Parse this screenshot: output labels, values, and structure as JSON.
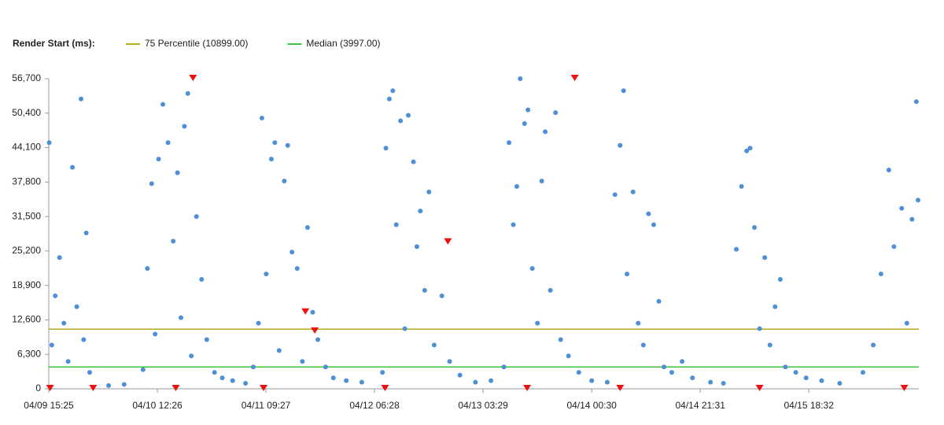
{
  "chart_data": {
    "type": "scatter",
    "legend_title": "Render Start (ms):",
    "xlim": [
      "04/09 15:25",
      "04/16 15:49"
    ],
    "xticks": [
      "04/09 15:25",
      "04/10 12:26",
      "04/11 09:27",
      "04/12 06:28",
      "04/13 03:29",
      "04/14 00:30",
      "04/14 21:31",
      "04/15 18:32"
    ],
    "ylim": [
      0,
      56700
    ],
    "yticks": [
      0,
      {
        "value": 6300,
        "label": "6,300"
      },
      {
        "value": 12600,
        "label": "12,600"
      },
      {
        "value": 18900,
        "label": "18,900"
      },
      {
        "value": 25200,
        "label": "25,200"
      },
      {
        "value": 31500,
        "label": "31,500"
      },
      {
        "value": 37800,
        "label": "37,800"
      },
      {
        "value": 44100,
        "label": "44,100"
      },
      {
        "value": 50400,
        "label": "50,400"
      },
      {
        "value": 56700,
        "label": "56,700"
      }
    ],
    "reference_lines": [
      {
        "name": "75 Percentile (10899.00)",
        "value": 10899,
        "color": "#b8a81e"
      },
      {
        "name": "Median (3997.00)",
        "value": 3997,
        "color": "#3cc43c"
      }
    ],
    "series": [
      {
        "color": "#4f8fd6",
        "marker": "circle",
        "x": [
          "04/09 15:30",
          "04/09 16:00",
          "04/09 16:40",
          "04/09 17:30",
          "04/09 18:20",
          "04/09 19:10",
          "04/09 20:00",
          "04/09 20:50",
          "04/09 21:40",
          "04/09 22:10",
          "04/09 22:40",
          "04/09 23:20",
          "04/10 03:00",
          "04/10 06:00",
          "04/10 09:40",
          "04/10 10:30",
          "04/10 11:20",
          "04/10 12:00",
          "04/10 12:40",
          "04/10 13:30",
          "04/10 14:30",
          "04/10 15:30",
          "04/10 16:20",
          "04/10 17:00",
          "04/10 17:40",
          "04/10 18:20",
          "04/10 19:00",
          "04/10 20:00",
          "04/10 21:00",
          "04/10 22:00",
          "04/10 23:30",
          "04/11 01:00",
          "04/11 03:00",
          "04/11 05:30",
          "04/11 07:00",
          "04/11 08:00",
          "04/11 08:40",
          "04/11 09:30",
          "04/11 10:30",
          "04/11 11:10",
          "04/11 12:00",
          "04/11 13:00",
          "04/11 13:40",
          "04/11 14:30",
          "04/11 15:30",
          "04/11 16:30",
          "04/11 17:30",
          "04/11 18:30",
          "04/11 19:30",
          "04/11 21:00",
          "04/11 22:30",
          "04/12 01:00",
          "04/12 04:00",
          "04/12 08:00",
          "04/12 08:40",
          "04/12 09:20",
          "04/12 10:00",
          "04/12 10:40",
          "04/12 11:30",
          "04/12 12:20",
          "04/12 13:00",
          "04/12 14:00",
          "04/12 14:40",
          "04/12 15:20",
          "04/12 16:10",
          "04/12 17:00",
          "04/12 18:00",
          "04/12 19:30",
          "04/12 21:00",
          "04/12 23:00",
          "04/13 02:00",
          "04/13 05:00",
          "04/13 07:30",
          "04/13 08:30",
          "04/13 09:20",
          "04/13 10:00",
          "04/13 10:40",
          "04/13 11:30",
          "04/13 12:10",
          "04/13 13:00",
          "04/13 14:00",
          "04/13 14:50",
          "04/13 15:30",
          "04/13 16:30",
          "04/13 17:30",
          "04/13 18:30",
          "04/13 20:00",
          "04/13 22:00",
          "04/14 00:30",
          "04/14 03:30",
          "04/14 05:00",
          "04/14 06:00",
          "04/14 06:40",
          "04/14 07:20",
          "04/14 08:30",
          "04/14 09:30",
          "04/14 10:30",
          "04/14 11:30",
          "04/14 12:30",
          "04/14 13:30",
          "04/14 14:30",
          "04/14 16:00",
          "04/14 18:00",
          "04/14 20:00",
          "04/14 23:30",
          "04/15 02:00",
          "04/15 04:30",
          "04/15 05:30",
          "04/15 06:30",
          "04/15 07:10",
          "04/15 08:00",
          "04/15 09:00",
          "04/15 10:00",
          "04/15 11:00",
          "04/15 12:00",
          "04/15 13:00",
          "04/15 14:00",
          "04/15 16:00",
          "04/15 18:00",
          "04/15 21:00",
          "04/16 00:30",
          "04/16 05:00",
          "04/16 07:00",
          "04/16 08:30",
          "04/16 10:00",
          "04/16 11:00",
          "04/16 12:30",
          "04/16 13:30",
          "04/16 14:30",
          "04/16 15:20",
          "04/16 15:40"
        ],
        "values": [
          45000,
          8000,
          17000,
          24000,
          12000,
          5000,
          40500,
          15000,
          53000,
          9000,
          28500,
          3000,
          600,
          800,
          3500,
          22000,
          37500,
          10000,
          42000,
          52000,
          45000,
          27000,
          39500,
          13000,
          48000,
          54000,
          6000,
          31500,
          20000,
          9000,
          3000,
          2000,
          1500,
          1000,
          4000,
          12000,
          49500,
          21000,
          42000,
          45000,
          7000,
          38000,
          44500,
          25000,
          22000,
          5000,
          29500,
          14000,
          9000,
          4000,
          2000,
          1500,
          1200,
          3000,
          44000,
          53000,
          54500,
          30000,
          49000,
          11000,
          50000,
          41500,
          26000,
          32500,
          18000,
          36000,
          8000,
          17000,
          5000,
          2500,
          1200,
          1500,
          4000,
          45000,
          30000,
          37000,
          56700,
          48500,
          51000,
          22000,
          12000,
          38000,
          47000,
          18000,
          50500,
          9000,
          6000,
          3000,
          1500,
          1200,
          35500,
          44500,
          54500,
          21000,
          36000,
          12000,
          8000,
          32000,
          30000,
          16000,
          4000,
          3000,
          5000,
          2000,
          1200,
          1000,
          25500,
          37000,
          43500,
          44000,
          29500,
          11000,
          24000,
          8000,
          15000,
          20000,
          4000,
          3000,
          2000,
          1500,
          1000,
          3000,
          8000,
          21000,
          40000,
          26000,
          33000,
          12000,
          31000,
          52500,
          34500
        ]
      },
      {
        "color": "#ee1111",
        "marker": "triangle",
        "x": [
          "04/10 19:20",
          "04/13 21:13",
          "04/11 17:05",
          "04/11 18:54",
          "04/12 20:40",
          "04/09 15:40",
          "04/10 00:00",
          "04/10 16:00",
          "04/11 09:00",
          "04/12 08:30",
          "04/13 12:00",
          "04/14 06:00",
          "04/15 09:00",
          "04/16 13:00"
        ],
        "values": [
          56700,
          56700,
          14000,
          10500,
          26800,
          0,
          0,
          0,
          0,
          0,
          0,
          0,
          0,
          0
        ]
      }
    ]
  }
}
